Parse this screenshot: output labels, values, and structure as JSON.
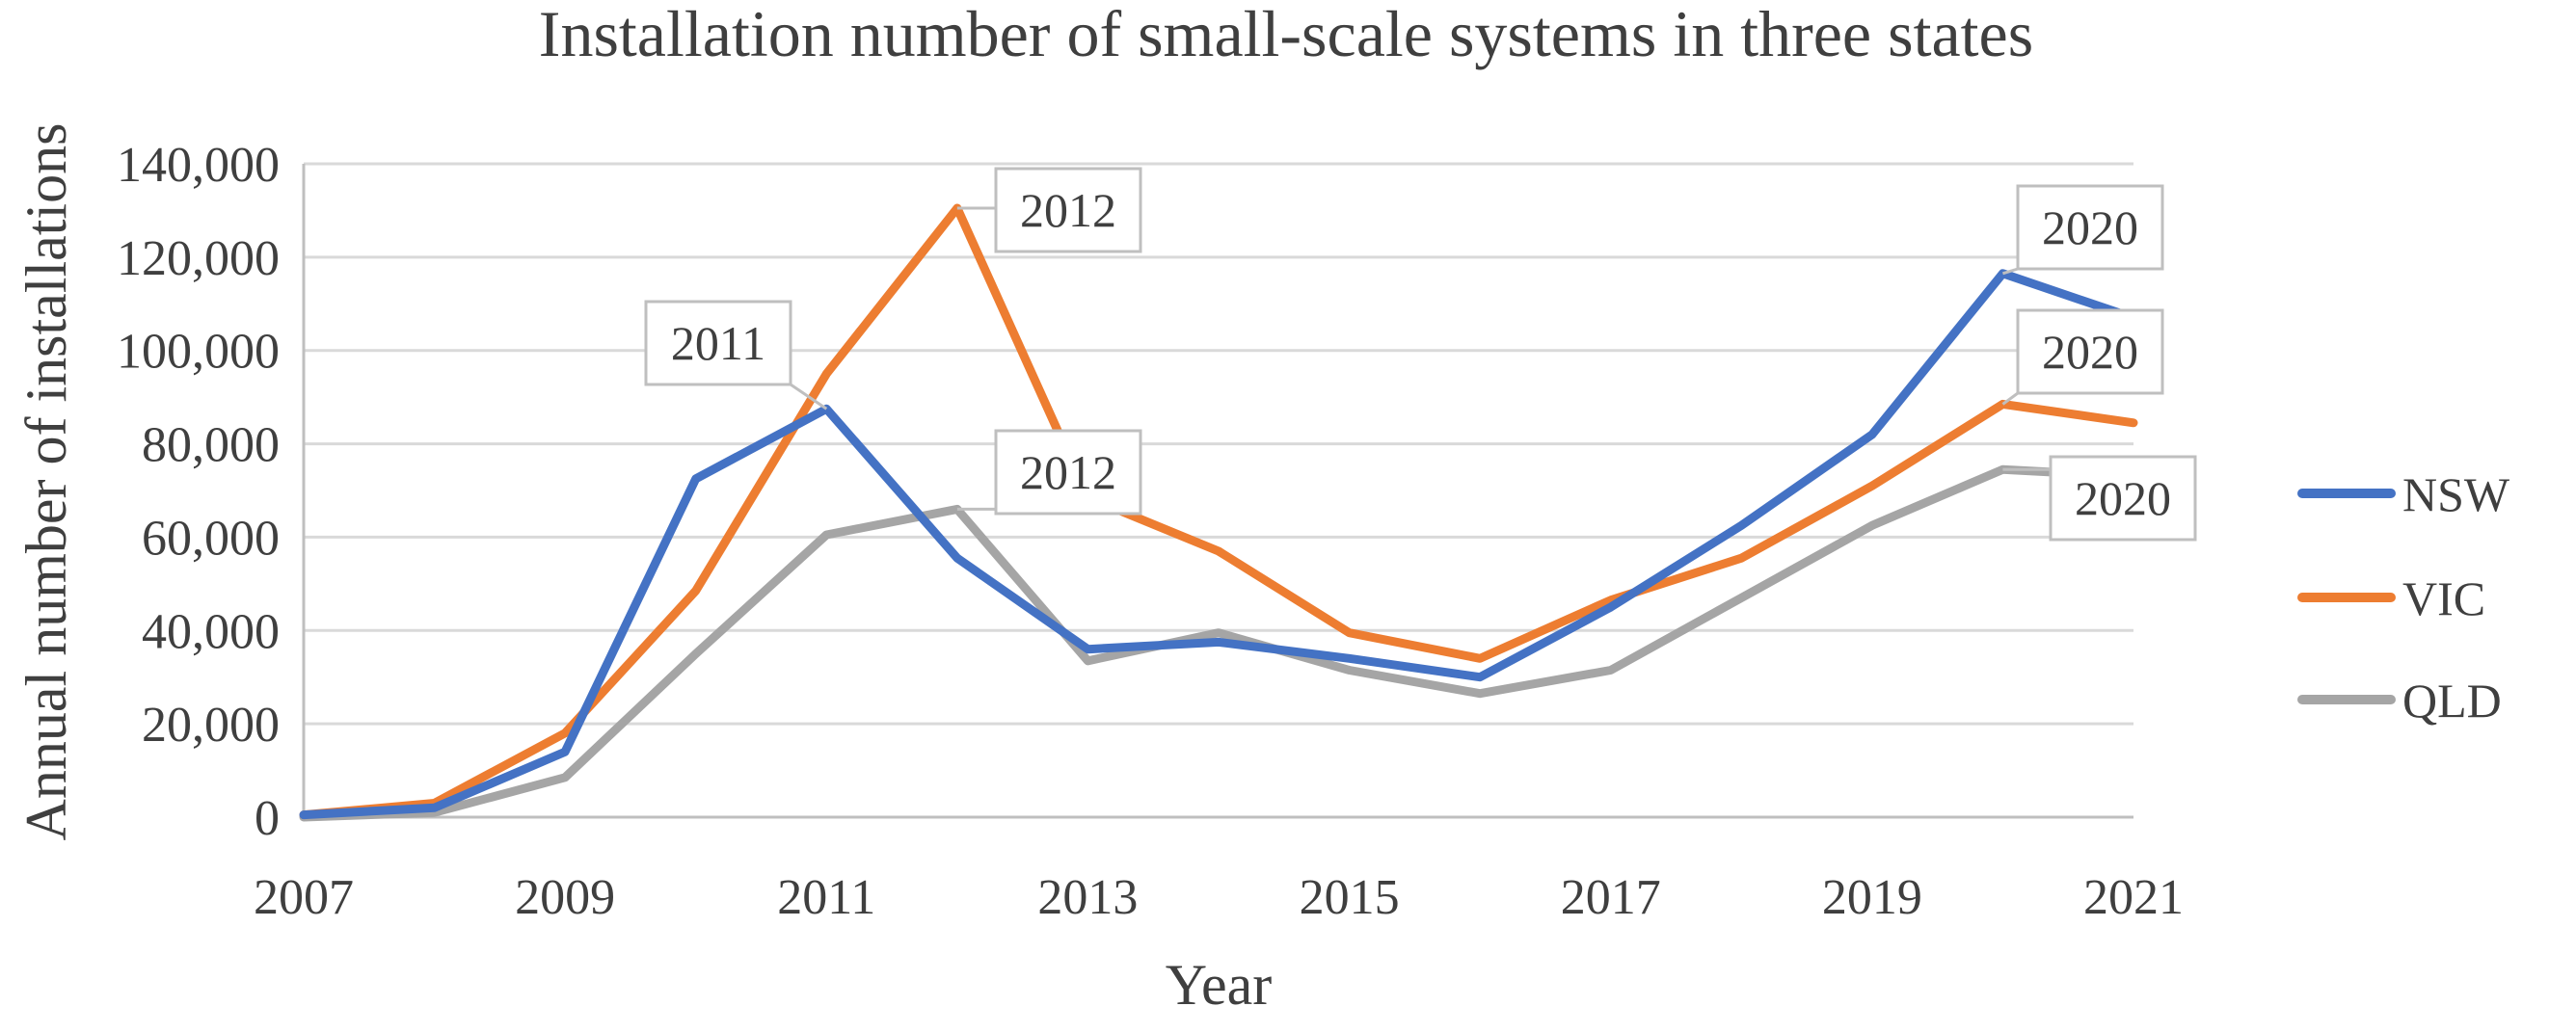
{
  "chart_data": {
    "type": "line",
    "title": "Installation number of small-scale systems in three states",
    "xlabel": "Year",
    "ylabel": "Annual number of installations",
    "x": [
      2007,
      2008,
      2009,
      2010,
      2011,
      2012,
      2013,
      2014,
      2015,
      2016,
      2017,
      2018,
      2019,
      2020,
      2021
    ],
    "x_tick_labels": [
      "2007",
      "2009",
      "2011",
      "2013",
      "2015",
      "2017",
      "2019",
      "2021"
    ],
    "x_tick_values": [
      2007,
      2009,
      2011,
      2013,
      2015,
      2017,
      2019,
      2021
    ],
    "y_tick_labels": [
      "0",
      "20,000",
      "40,000",
      "60,000",
      "80,000",
      "100,000",
      "120,000",
      "140,000"
    ],
    "y_tick_values": [
      0,
      20000,
      40000,
      60000,
      80000,
      100000,
      120000,
      140000
    ],
    "ylim": [
      0,
      140000
    ],
    "xlim": [
      2007,
      2021
    ],
    "grid": true,
    "legend_position": "right",
    "series": [
      {
        "name": "NSW",
        "color": "#4472c4",
        "values": [
          500,
          2000,
          14000,
          72500,
          87500,
          55500,
          36000,
          37500,
          34000,
          30000,
          45000,
          62500,
          82000,
          116500,
          107000
        ]
      },
      {
        "name": "VIC",
        "color": "#ed7d31",
        "values": [
          500,
          3000,
          18000,
          48500,
          95000,
          130500,
          68500,
          57000,
          39500,
          34000,
          46500,
          55500,
          71000,
          88500,
          84500
        ]
      },
      {
        "name": "QLD",
        "color": "#a5a5a5",
        "values": [
          0,
          1000,
          8500,
          35000,
          60500,
          66000,
          33500,
          39500,
          31500,
          26500,
          31500,
          47000,
          62500,
          74500,
          73000
        ]
      }
    ],
    "annotations": [
      {
        "series": "VIC",
        "x": 2012,
        "text": "2012"
      },
      {
        "series": "NSW",
        "x": 2011,
        "text": "2011"
      },
      {
        "series": "QLD",
        "x": 2012,
        "text": "2012"
      },
      {
        "series": "NSW",
        "x": 2020,
        "text": "2020"
      },
      {
        "series": "VIC",
        "x": 2020,
        "text": "2020"
      },
      {
        "series": "QLD",
        "x": 2020,
        "text": "2020"
      }
    ]
  }
}
